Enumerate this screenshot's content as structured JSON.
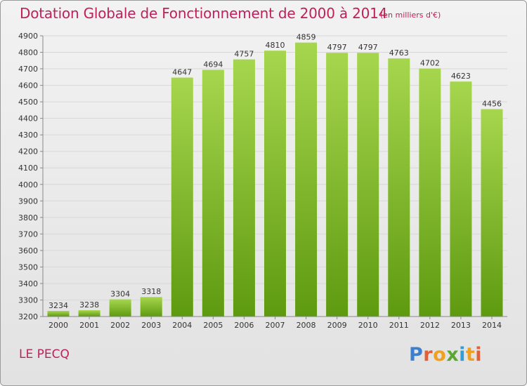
{
  "header": {
    "title": "Dotation Globale de Fonctionnement de 2000 à 2014",
    "unit_note": "(en milliers d'€)"
  },
  "footer": {
    "commune": "LE PECQ",
    "logo_text": "Proxiti"
  },
  "colors": {
    "title": "#c0205a",
    "bar_top": "#a6d64e",
    "bar_bottom": "#5e9a10",
    "grid": "#d8d8d8",
    "axis": "#888888"
  },
  "chart_data": {
    "type": "bar",
    "title": "Dotation Globale de Fonctionnement de 2000 à 2014",
    "xlabel": "",
    "ylabel": "",
    "categories": [
      "2000",
      "2001",
      "2002",
      "2003",
      "2004",
      "2005",
      "2006",
      "2007",
      "2008",
      "2009",
      "2010",
      "2011",
      "2012",
      "2013",
      "2014"
    ],
    "values": [
      3234,
      3238,
      3304,
      3318,
      4647,
      4694,
      4757,
      4810,
      4859,
      4797,
      4797,
      4763,
      4702,
      4623,
      4456
    ],
    "value_labels": [
      "3234",
      "3238",
      "3304",
      "3318",
      "4647",
      "4694",
      "4757",
      "4810",
      "4859",
      "4797",
      "4797",
      "4763",
      "4702",
      "4623",
      "4456"
    ],
    "ylim": [
      3200,
      4900
    ],
    "yticks": [
      3200,
      3300,
      3400,
      3500,
      3600,
      3700,
      3800,
      3900,
      4000,
      4100,
      4200,
      4300,
      4400,
      4500,
      4600,
      4700,
      4800,
      4900
    ],
    "ytick_labels": [
      "3200",
      "3300",
      "3400",
      "3500",
      "3600",
      "3700",
      "3800",
      "3900",
      "4000",
      "4100",
      "4200",
      "4300",
      "4400",
      "4500",
      "4600",
      "4700",
      "4800",
      "4900"
    ],
    "grid": true,
    "legend": "none"
  }
}
